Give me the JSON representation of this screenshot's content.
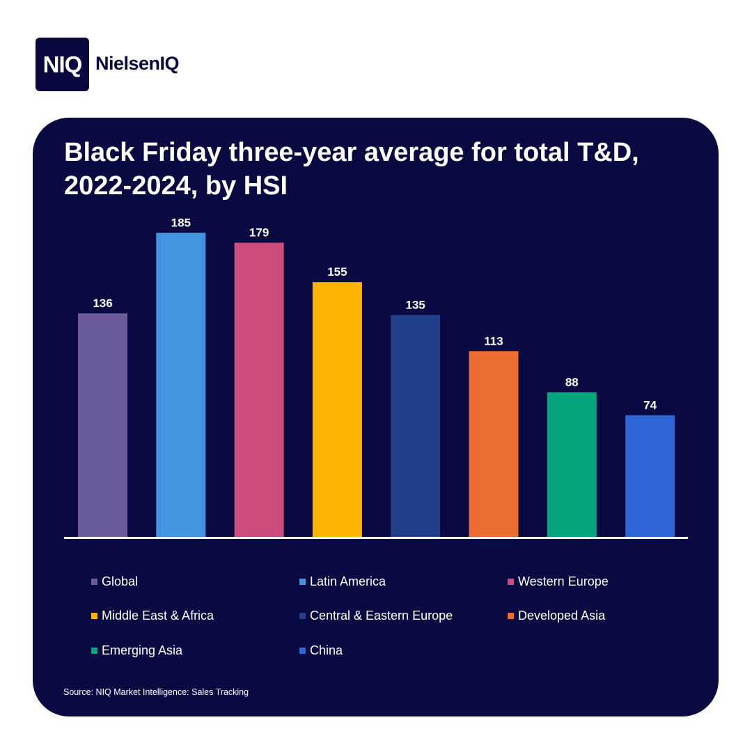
{
  "brand": {
    "logo_text": "NIQ",
    "wordmark": "NielsenIQ",
    "navy": "#08083f",
    "card_bg": "#0a0a42"
  },
  "chart_data": {
    "type": "bar",
    "title": "Black Friday three-year average for total T&D, 2022-2024, by HSI",
    "categories": [
      "Global",
      "Latin America",
      "Western Europe",
      "Middle East & Africa",
      "Central & Eastern Europe",
      "Developed Asia",
      "Emerging Asia",
      "China"
    ],
    "values": [
      136,
      185,
      179,
      155,
      135,
      113,
      88,
      74
    ],
    "value_labels": [
      "136",
      "185",
      "179",
      "155",
      "135",
      "113",
      "88",
      "74"
    ],
    "colors": [
      "#6a5a9a",
      "#4495e1",
      "#cc4d7b",
      "#ffb400",
      "#223f8a",
      "#ed6c31",
      "#05a47c",
      "#2f66d6"
    ],
    "xlabel": "",
    "ylabel": "",
    "ylim": [
      0,
      190
    ],
    "grid": false,
    "legend_position": "bottom"
  },
  "source_text": "Source: NIQ Market Intelligence: Sales Tracking"
}
